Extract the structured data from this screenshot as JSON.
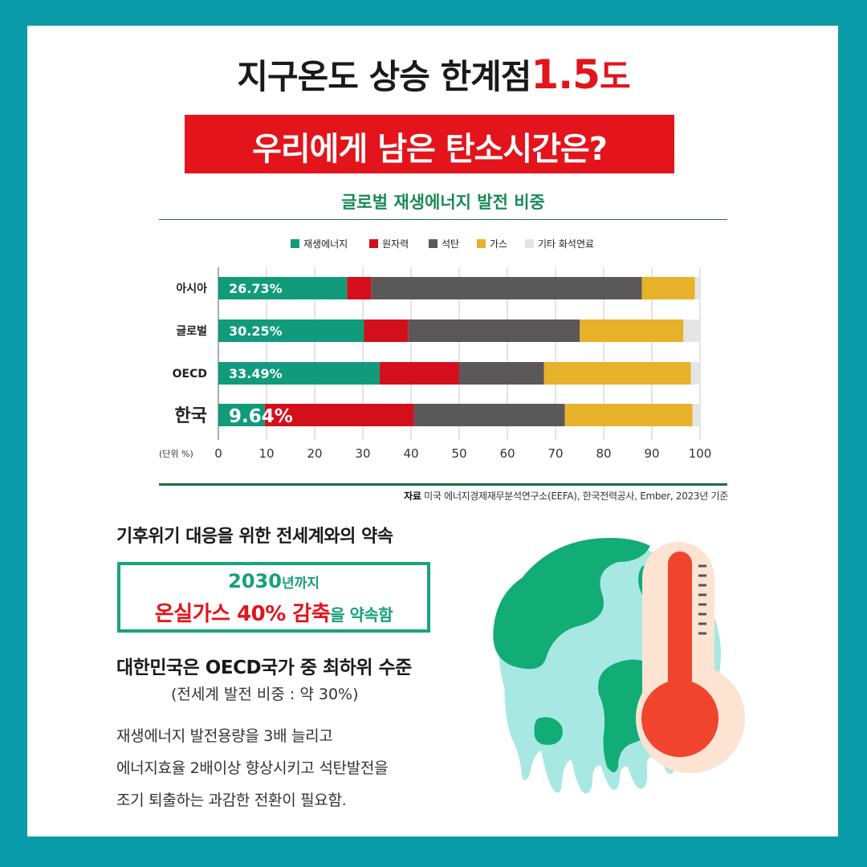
{
  "header": {
    "title_part1": "지구온도 상승 한계점",
    "title_number": "1.5",
    "title_unit": "도",
    "banner": "우리에게 남은 탄소시간은?"
  },
  "chart_data": {
    "type": "bar",
    "stacked": true,
    "orientation": "horizontal",
    "title": "글로벌 재생에너지 발전 비중",
    "categories": [
      "아시아",
      "글로벌",
      "OECD",
      "한국"
    ],
    "series": [
      {
        "name": "재생에너지",
        "color": "#119b7a",
        "values": [
          26.73,
          30.25,
          33.49,
          9.64
        ]
      },
      {
        "name": "원자력",
        "color": "#d40f1c",
        "values": [
          5.0,
          9.2,
          16.5,
          31.0
        ]
      },
      {
        "name": "석탄",
        "color": "#5b5859",
        "values": [
          56.2,
          35.6,
          17.6,
          31.3
        ]
      },
      {
        "name": "가스",
        "color": "#e8b12a",
        "values": [
          11.0,
          21.5,
          30.5,
          26.5
        ]
      },
      {
        "name": "기타 화석연료",
        "color": "#e5e5e5",
        "values": [
          1.07,
          3.45,
          1.91,
          1.56
        ]
      }
    ],
    "data_labels": [
      "26.73%",
      "30.25%",
      "33.49%",
      "9.64%"
    ],
    "x_ticks": [
      "0",
      "10",
      "20",
      "30",
      "40",
      "50",
      "60",
      "70",
      "80",
      "90",
      "100"
    ],
    "xlim": [
      0,
      100
    ],
    "unit_label": "(단위 %)",
    "legend_position": "top",
    "grid": true
  },
  "source": {
    "label": "자료",
    "text": "미국 에너지경제재무분석연구소(EEFA), 한국전력공사, Ember, 2023년 기준"
  },
  "pledge": {
    "title": "기후위기 대응을 위한 전세계와의 약속",
    "year": "2030",
    "year_suffix": "년까지",
    "target": "온실가스 40% 감축",
    "target_suffix": "을 약속함"
  },
  "korea": {
    "heading": "대한민국은 OECD국가 중 최하위 수준",
    "sub": "(전세계 발전 비중 : 약 30%)",
    "lines": [
      "재생에너지 발전용량을 3배 늘리고",
      "에너지효율 2배이상 향상시키고 석탄발전을",
      "조기 퇴출하는 과감한 전환이 필요함."
    ]
  },
  "colors": {
    "frame": "#0a9ba9",
    "accent_red": "#e3141b",
    "accent_green": "#14a07a"
  }
}
